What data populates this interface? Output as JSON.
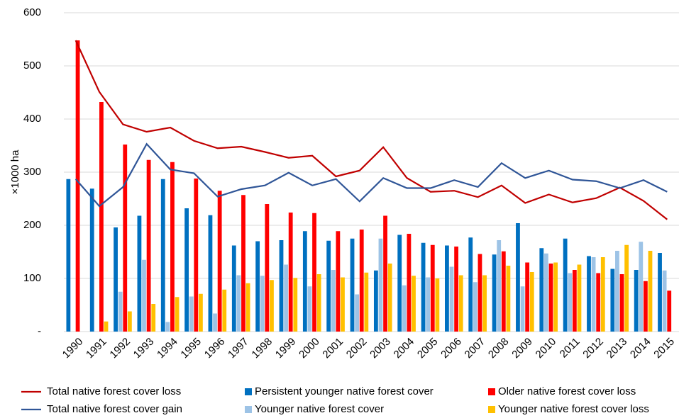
{
  "chart_data": {
    "type": "bar",
    "y_label": "×1000 ha",
    "categories": [
      "1990",
      "1991",
      "1992",
      "1993",
      "1994",
      "1995",
      "1996",
      "1997",
      "1998",
      "1999",
      "2000",
      "2001",
      "2002",
      "2003",
      "2004",
      "2005",
      "2006",
      "2007",
      "2008",
      "2009",
      "2010",
      "2011",
      "2012",
      "2013",
      "2014",
      "2015"
    ],
    "ylim": [
      0,
      600
    ],
    "yticks": [
      {
        "value": 0,
        "label": "-"
      },
      100,
      200,
      300,
      400,
      500,
      600
    ],
    "grid": true,
    "series": [
      {
        "name": "Total native forest cover loss",
        "type": "line",
        "color": "#c00000",
        "values": [
          548,
          451,
          390,
          376,
          384,
          359,
          345,
          348,
          338,
          327,
          331,
          292,
          303,
          347,
          289,
          263,
          265,
          253,
          275,
          242,
          258,
          243,
          251,
          271,
          246,
          211
        ]
      },
      {
        "name": "Total native forest cover gain",
        "type": "line",
        "color": "#2f5597",
        "values": [
          287,
          236,
          272,
          353,
          305,
          298,
          254,
          268,
          275,
          299,
          275,
          287,
          245,
          289,
          270,
          270,
          285,
          272,
          317,
          289,
          303,
          286,
          283,
          270,
          285,
          263
        ]
      },
      {
        "name": "Persistent younger native forest cover",
        "type": "bar",
        "color": "#0070c0",
        "values": [
          287,
          269,
          196,
          218,
          287,
          232,
          219,
          162,
          170,
          172,
          189,
          171,
          175,
          115,
          182,
          167,
          162,
          177,
          145,
          204,
          157,
          175,
          142,
          118,
          116,
          148
        ]
      },
      {
        "name": "Younger native forest cover",
        "type": "bar",
        "color": "#9dc3e6",
        "values": [
          0,
          0,
          75,
          135,
          18,
          66,
          34,
          106,
          105,
          126,
          85,
          116,
          70,
          175,
          87,
          102,
          122,
          93,
          172,
          85,
          147,
          110,
          140,
          152,
          169,
          115
        ]
      },
      {
        "name": "Older native forest cover loss",
        "type": "bar",
        "color": "#ff0000",
        "values": [
          548,
          432,
          352,
          323,
          319,
          288,
          265,
          257,
          240,
          224,
          223,
          189,
          192,
          218,
          184,
          163,
          160,
          146,
          151,
          130,
          128,
          116,
          110,
          108,
          95,
          77
        ]
      },
      {
        "name": "Younger native forest cover loss",
        "type": "bar",
        "color": "#ffc000",
        "values": [
          0,
          19,
          38,
          52,
          65,
          71,
          79,
          91,
          97,
          101,
          108,
          102,
          111,
          128,
          105,
          100,
          106,
          106,
          124,
          112,
          130,
          126,
          140,
          163,
          152,
          null
        ]
      }
    ]
  }
}
